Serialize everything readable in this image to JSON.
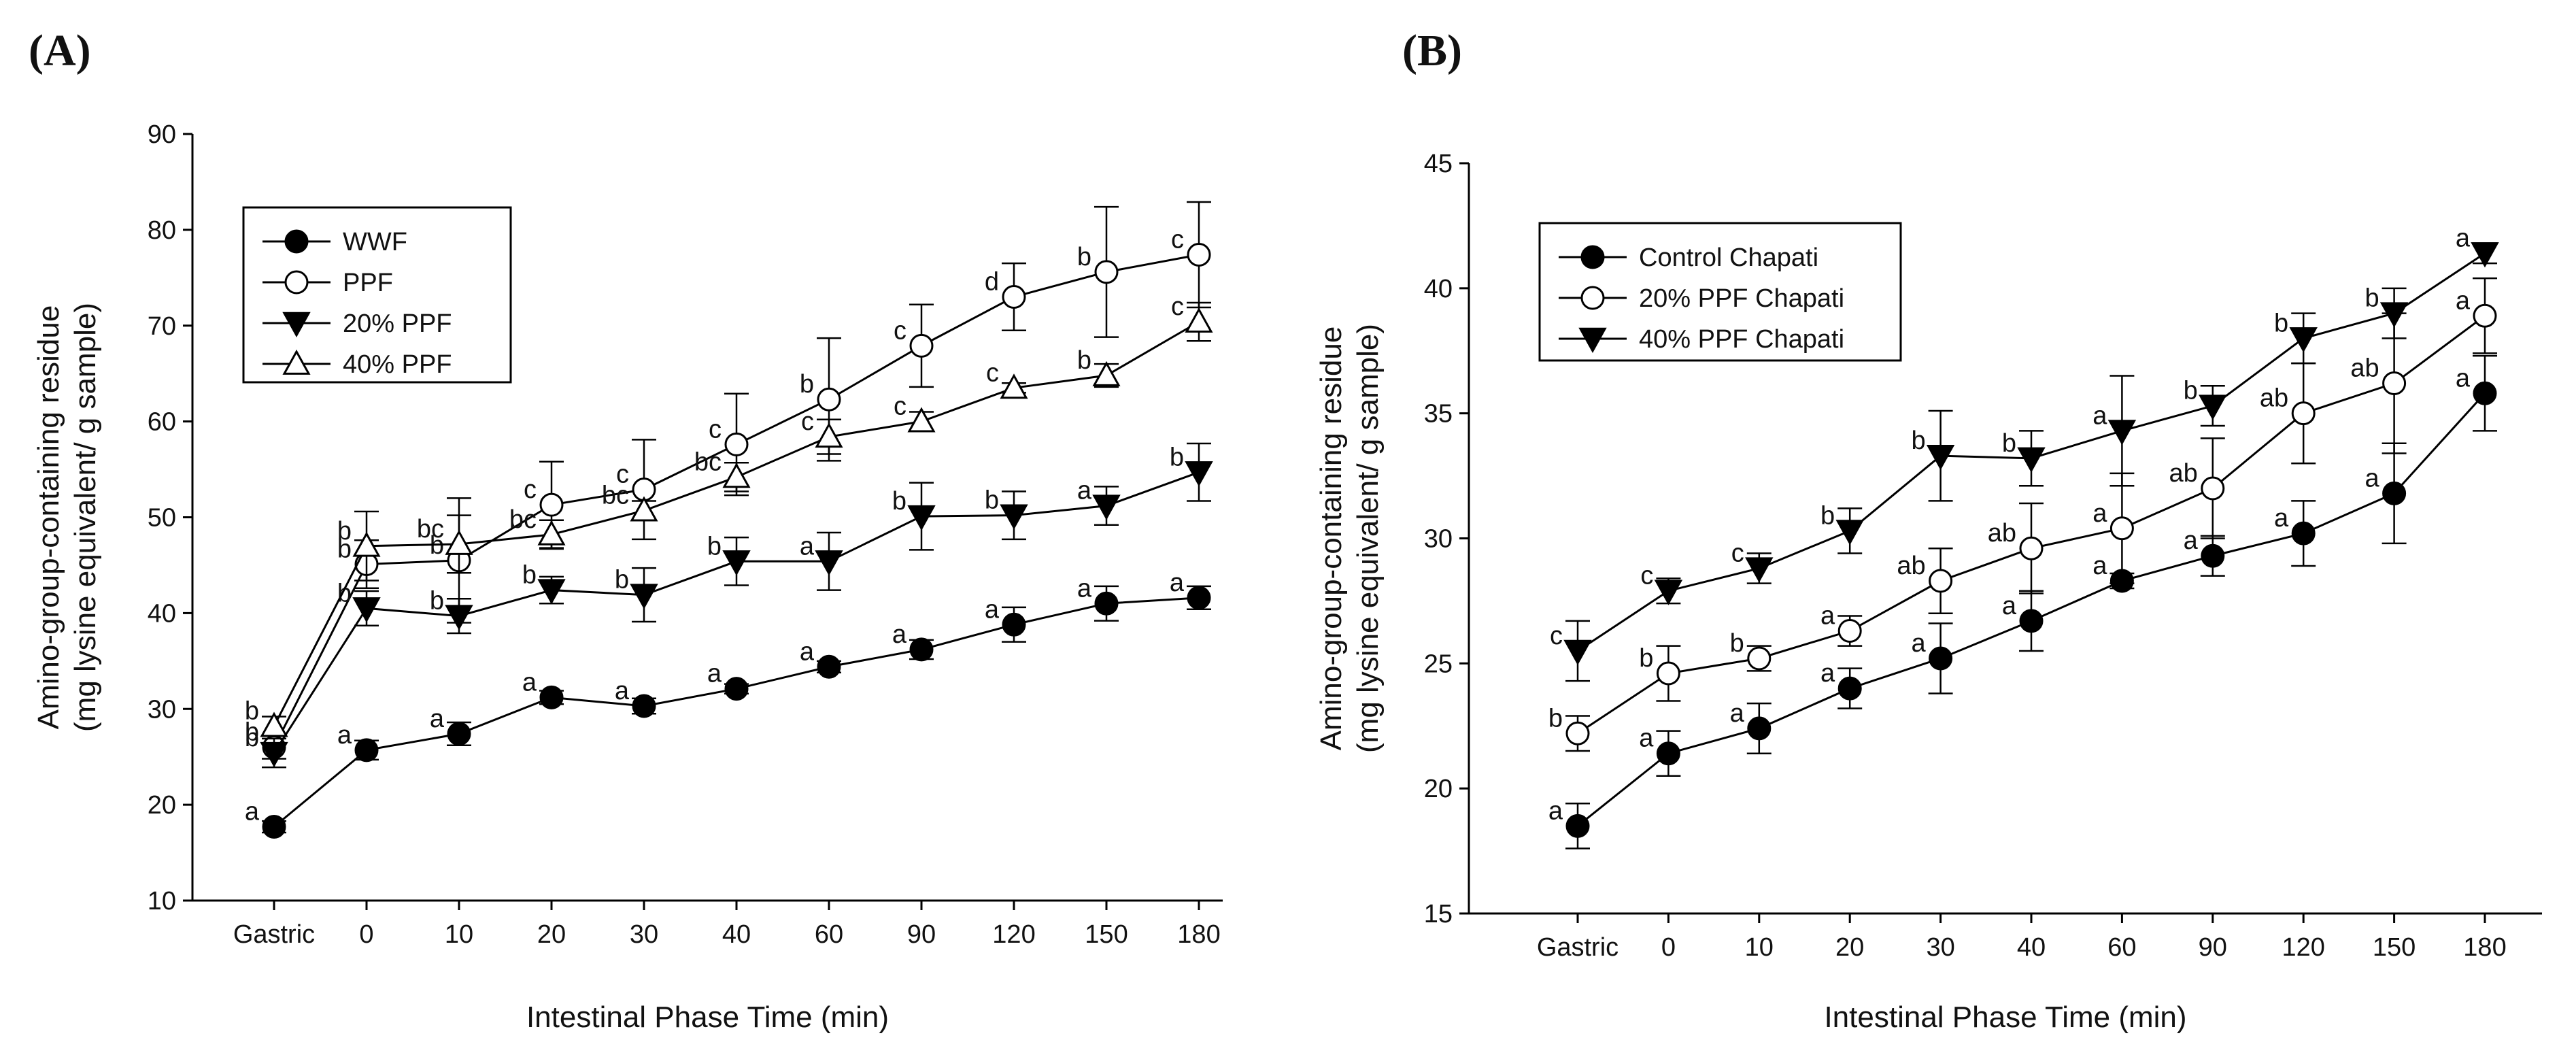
{
  "chart_data": [
    {
      "panel_label": "(A)",
      "type": "line",
      "categories": [
        "Gastric",
        "0",
        "10",
        "20",
        "30",
        "40",
        "60",
        "90",
        "120",
        "150",
        "180"
      ],
      "xlabel": "Intestinal Phase Time (min)",
      "ylabel": [
        "Amino-group-containing residue",
        "(mg lysine equivalent/ g sample)"
      ],
      "ylim": [
        10,
        90
      ],
      "yticks": [
        10,
        20,
        30,
        40,
        50,
        60,
        70,
        80,
        90
      ],
      "legend_position": "top-left",
      "series": [
        {
          "name": "WWF",
          "marker": "filled-circle",
          "values": [
            17.7,
            25.7,
            27.4,
            31.2,
            30.3,
            32.1,
            34.4,
            36.2,
            38.8,
            41.0,
            41.6
          ],
          "errors": [
            0.6,
            1.0,
            1.2,
            0.7,
            0.8,
            0.5,
            0.6,
            1.0,
            1.8,
            1.8,
            1.2
          ],
          "labels": [
            "a",
            "a",
            "a",
            "a",
            "a",
            "a",
            "a",
            "a",
            "a",
            "a",
            "a"
          ]
        },
        {
          "name": "PPF",
          "marker": "open-circle",
          "values": [
            26.0,
            45.1,
            45.5,
            51.3,
            52.9,
            57.6,
            62.3,
            67.9,
            73.0,
            75.6,
            77.4
          ],
          "errors": [
            1.2,
            2.5,
            6.5,
            4.5,
            5.2,
            5.3,
            6.4,
            4.3,
            3.5,
            6.8,
            5.5
          ],
          "labels": [
            "b",
            "b",
            "b",
            "c",
            "c",
            "c",
            "b",
            "c",
            "d",
            "b",
            "c"
          ]
        },
        {
          "name": "20% PPF",
          "marker": "filled-triangle-down",
          "values": [
            25.4,
            40.5,
            39.7,
            42.4,
            41.9,
            45.4,
            45.4,
            50.1,
            50.2,
            51.2,
            54.7
          ],
          "errors": [
            1.5,
            1.8,
            1.8,
            1.4,
            2.8,
            2.5,
            3.0,
            3.5,
            2.5,
            2.0,
            3.0
          ],
          "labels": [
            "b",
            "b",
            "b",
            "b",
            "b",
            "b",
            "a",
            "b",
            "b",
            "a",
            "b"
          ]
        },
        {
          "name": "40% PPF",
          "marker": "open-triangle-up",
          "values": [
            28.2,
            47.0,
            47.2,
            48.2,
            50.7,
            54.2,
            58.4,
            60.0,
            63.5,
            64.8,
            70.4
          ],
          "errors": [
            1.0,
            3.6,
            3.0,
            1.5,
            1.0,
            1.5,
            1.8,
            1.0,
            0.5,
            1.2,
            2.0
          ],
          "labels": [
            "b",
            "b",
            "bc",
            "bc",
            "bc",
            "bc",
            "c",
            "c",
            "c",
            "b",
            "c"
          ]
        }
      ]
    },
    {
      "panel_label": "(B)",
      "type": "line",
      "categories": [
        "Gastric",
        "0",
        "10",
        "20",
        "30",
        "40",
        "60",
        "90",
        "120",
        "150",
        "180"
      ],
      "xlabel": "Intestinal Phase Time (min)",
      "ylabel": [
        "Amino-group-containing residue",
        "(mg lysine equivalent/ g sample)"
      ],
      "ylim": [
        15,
        45
      ],
      "yticks": [
        15,
        20,
        25,
        30,
        35,
        40,
        45
      ],
      "legend_position": "top-left",
      "series": [
        {
          "name": "Control Chapati",
          "marker": "filled-circle",
          "values": [
            18.5,
            21.4,
            22.4,
            24.0,
            25.2,
            26.7,
            28.3,
            29.3,
            30.2,
            31.8,
            35.8
          ],
          "errors": [
            0.9,
            0.9,
            1.0,
            0.8,
            1.4,
            1.2,
            0.3,
            0.8,
            1.3,
            2.0,
            1.5
          ],
          "labels": [
            "a",
            "a",
            "a",
            "a",
            "a",
            "a",
            "a",
            "a",
            "a",
            "a",
            "a"
          ]
        },
        {
          "name": "20% PPF Chapati",
          "marker": "open-circle",
          "values": [
            22.2,
            24.6,
            25.2,
            26.3,
            28.3,
            29.6,
            30.4,
            32.0,
            35.0,
            36.2,
            38.9
          ],
          "errors": [
            0.7,
            1.1,
            0.5,
            0.6,
            1.3,
            1.8,
            2.2,
            2.0,
            2.0,
            2.8,
            1.5
          ],
          "labels": [
            "b",
            "b",
            "b",
            "a",
            "ab",
            "ab",
            "a",
            "ab",
            "ab",
            "ab",
            "a"
          ]
        },
        {
          "name": "40% PPF Chapati",
          "marker": "filled-triangle-down",
          "values": [
            25.5,
            27.9,
            28.8,
            30.3,
            33.3,
            33.2,
            34.3,
            35.3,
            38.0,
            39.0,
            41.4
          ],
          "errors": [
            1.2,
            0.5,
            0.6,
            0.9,
            1.8,
            1.1,
            2.2,
            0.8,
            1.0,
            1.0,
            0.4
          ],
          "labels": [
            "c",
            "c",
            "c",
            "b",
            "b",
            "b",
            "a",
            "b",
            "b",
            "b",
            "a"
          ]
        }
      ]
    }
  ]
}
